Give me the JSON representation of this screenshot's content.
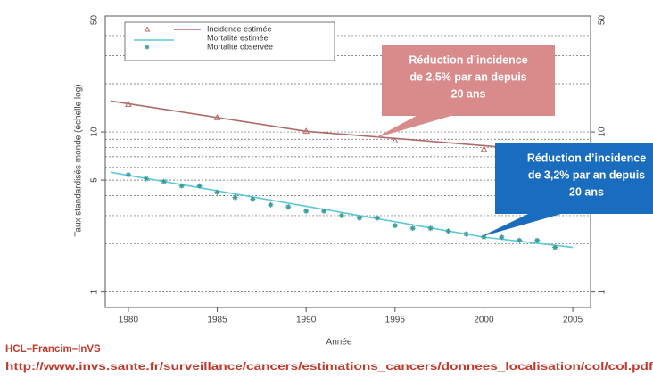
{
  "chart_data": {
    "type": "line",
    "x_label": "Année",
    "y_label": "Taux standardisés monde (échelle log)",
    "log_y": true,
    "xlim": [
      1978.7,
      2006
    ],
    "ylim": [
      0.8,
      53
    ],
    "xticks": [
      1980,
      1985,
      1990,
      1995,
      2000,
      2005
    ],
    "yticks": [
      1,
      5,
      10,
      50
    ],
    "minor_yticks": [
      2,
      3,
      4,
      6,
      7,
      8,
      9,
      20,
      30,
      40
    ],
    "grid": true,
    "right_axis": true,
    "legend": "upper left",
    "series": [
      {
        "name": "Incidence estimée",
        "color": "#b06a6a",
        "marker": "triangle",
        "x": [
          1980,
          1985,
          1990,
          1995,
          2000
        ],
        "values": [
          14.9,
          12.3,
          10.1,
          8.8,
          7.8
        ]
      },
      {
        "name": "Incidence estimée",
        "color": "#b06a6a",
        "marker": "line",
        "x": [
          1979,
          1990,
          2005
        ],
        "values": [
          15.6,
          10.1,
          7.4
        ]
      },
      {
        "name": "Mortalité estimée",
        "color": "#5bc8d8",
        "marker": "line",
        "x": [
          1979,
          2000,
          2005
        ],
        "values": [
          5.6,
          2.2,
          1.9
        ]
      },
      {
        "name": "Mortalité observée",
        "color": "#3a9c9c",
        "marker": "asterisk",
        "x": [
          1980,
          1981,
          1982,
          1983,
          1984,
          1985,
          1986,
          1987,
          1988,
          1989,
          1990,
          1991,
          1992,
          1993,
          1994,
          1995,
          1996,
          1997,
          1998,
          1999,
          2000,
          2001,
          2002,
          2003,
          2004
        ],
        "values": [
          5.4,
          5.1,
          4.9,
          4.6,
          4.6,
          4.2,
          3.9,
          3.8,
          3.5,
          3.4,
          3.2,
          3.2,
          3.0,
          2.9,
          2.9,
          2.6,
          2.5,
          2.5,
          2.4,
          2.3,
          2.2,
          2.2,
          2.1,
          2.1,
          1.9
        ]
      }
    ],
    "annotations": [
      {
        "lines": [
          "Réduction d’incidence",
          "de 2,5% par an depuis",
          "20 ans"
        ],
        "color": "#d98a8a"
      },
      {
        "lines": [
          "Réduction d’incidence",
          "de 3,2% par an depuis",
          "20 ans"
        ],
        "color": "#1a6cbf"
      }
    ]
  },
  "footer": {
    "source": "HCL–Francim–InVS",
    "url": "http://www.invs.sante.fr/surveillance/cancers/estimations_cancers/donnees_localisation/col/col.pdf"
  }
}
